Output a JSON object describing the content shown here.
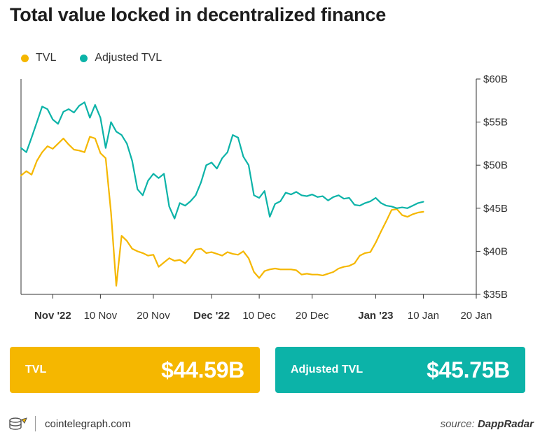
{
  "title": "Total value locked in decentralized finance",
  "legend": [
    {
      "label": "TVL",
      "color": "#f5b700"
    },
    {
      "label": "Adjusted TVL",
      "color": "#0cb3a8"
    }
  ],
  "cards": {
    "tvl": {
      "label": "TVL",
      "value": "$44.59B",
      "color": "#f5b700"
    },
    "adjusted": {
      "label": "Adjusted TVL",
      "value": "$45.75B",
      "color": "#0cb3a8"
    }
  },
  "footer": {
    "site": "cointelegraph.com",
    "source_prefix": "source:",
    "source_name": "DappRadar",
    "logo_icon": "cointelegraph-logo-icon"
  },
  "chart_data": {
    "type": "line",
    "x_unit": "days since Oct 25 2022",
    "ylim": [
      35,
      60
    ],
    "y_axis_position": "right",
    "y_ticks": [
      {
        "value": 35,
        "label": "$35B"
      },
      {
        "value": 40,
        "label": "$40B"
      },
      {
        "value": 45,
        "label": "$45B"
      },
      {
        "value": 50,
        "label": "$50B"
      },
      {
        "value": 55,
        "label": "$55B"
      },
      {
        "value": 60,
        "label": "$60B"
      }
    ],
    "x_ticks": [
      {
        "label": "Nov '22",
        "bold": true
      },
      {
        "label": "10 Nov",
        "bold": false
      },
      {
        "label": "20 Nov",
        "bold": false
      },
      {
        "label": "Dec '22",
        "bold": true
      },
      {
        "label": "10 Dec",
        "bold": false
      },
      {
        "label": "20 Dec",
        "bold": false
      },
      {
        "label": "Jan '23",
        "bold": true
      },
      {
        "label": "10 Jan",
        "bold": false
      },
      {
        "label": "20 Jan",
        "bold": false
      }
    ],
    "x_tick_dates": [
      "2022-11-01",
      "2022-11-10",
      "2022-11-20",
      "2022-12-01",
      "2022-12-10",
      "2022-12-20",
      "2023-01-01",
      "2023-01-10",
      "2023-01-20"
    ],
    "x_start": "2022-10-26",
    "x_end": "2023-01-20",
    "series": [
      {
        "name": "TVL",
        "color": "#f5b700",
        "points": [
          [
            "2022-10-26",
            48.8
          ],
          [
            "2022-10-27",
            49.3
          ],
          [
            "2022-10-28",
            48.9
          ],
          [
            "2022-10-29",
            50.5
          ],
          [
            "2022-10-30",
            51.5
          ],
          [
            "2022-10-31",
            52.2
          ],
          [
            "2022-11-01",
            51.9
          ],
          [
            "2022-11-02",
            52.5
          ],
          [
            "2022-11-03",
            53.1
          ],
          [
            "2022-11-04",
            52.4
          ],
          [
            "2022-11-05",
            51.8
          ],
          [
            "2022-11-06",
            51.7
          ],
          [
            "2022-11-07",
            51.5
          ],
          [
            "2022-11-08",
            53.3
          ],
          [
            "2022-11-09",
            53.1
          ],
          [
            "2022-11-10",
            51.4
          ],
          [
            "2022-11-11",
            50.8
          ],
          [
            "2022-11-12",
            44.5
          ],
          [
            "2022-11-13",
            36.0
          ],
          [
            "2022-11-14",
            41.8
          ],
          [
            "2022-11-15",
            41.2
          ],
          [
            "2022-11-16",
            40.3
          ],
          [
            "2022-11-17",
            40.0
          ],
          [
            "2022-11-18",
            39.8
          ],
          [
            "2022-11-19",
            39.5
          ],
          [
            "2022-11-20",
            39.6
          ],
          [
            "2022-11-21",
            38.2
          ],
          [
            "2022-11-22",
            38.7
          ],
          [
            "2022-11-23",
            39.2
          ],
          [
            "2022-11-24",
            38.9
          ],
          [
            "2022-11-25",
            39.0
          ],
          [
            "2022-11-26",
            38.6
          ],
          [
            "2022-11-27",
            39.3
          ],
          [
            "2022-11-28",
            40.2
          ],
          [
            "2022-11-29",
            40.3
          ],
          [
            "2022-11-30",
            39.8
          ],
          [
            "2022-12-01",
            39.9
          ],
          [
            "2022-12-02",
            39.7
          ],
          [
            "2022-12-03",
            39.5
          ],
          [
            "2022-12-04",
            39.9
          ],
          [
            "2022-12-05",
            39.7
          ],
          [
            "2022-12-06",
            39.6
          ],
          [
            "2022-12-07",
            40.0
          ],
          [
            "2022-12-08",
            39.2
          ],
          [
            "2022-12-09",
            37.6
          ],
          [
            "2022-12-10",
            36.9
          ],
          [
            "2022-12-11",
            37.7
          ],
          [
            "2022-12-12",
            37.9
          ],
          [
            "2022-12-13",
            38.0
          ],
          [
            "2022-12-14",
            37.9
          ],
          [
            "2022-12-15",
            37.9
          ],
          [
            "2022-12-16",
            37.9
          ],
          [
            "2022-12-17",
            37.8
          ],
          [
            "2022-12-18",
            37.3
          ],
          [
            "2022-12-19",
            37.4
          ],
          [
            "2022-12-20",
            37.3
          ],
          [
            "2022-12-21",
            37.3
          ],
          [
            "2022-12-22",
            37.2
          ],
          [
            "2022-12-23",
            37.4
          ],
          [
            "2022-12-24",
            37.6
          ],
          [
            "2022-12-25",
            38.0
          ],
          [
            "2022-12-26",
            38.2
          ],
          [
            "2022-12-27",
            38.3
          ],
          [
            "2022-12-28",
            38.6
          ],
          [
            "2022-12-29",
            39.5
          ],
          [
            "2022-12-30",
            39.8
          ],
          [
            "2022-12-31",
            39.9
          ],
          [
            "2023-01-01",
            41.0
          ],
          [
            "2023-01-02",
            42.3
          ],
          [
            "2023-01-03",
            43.5
          ],
          [
            "2023-01-04",
            44.8
          ],
          [
            "2023-01-05",
            44.9
          ],
          [
            "2023-01-06",
            44.2
          ],
          [
            "2023-01-07",
            44.0
          ],
          [
            "2023-01-08",
            44.3
          ],
          [
            "2023-01-09",
            44.5
          ],
          [
            "2023-01-10",
            44.59
          ]
        ]
      },
      {
        "name": "Adjusted TVL",
        "color": "#0cb3a8",
        "points": [
          [
            "2022-10-26",
            52.0
          ],
          [
            "2022-10-27",
            51.5
          ],
          [
            "2022-10-28",
            53.2
          ],
          [
            "2022-10-29",
            55.0
          ],
          [
            "2022-10-30",
            56.8
          ],
          [
            "2022-10-31",
            56.5
          ],
          [
            "2022-11-01",
            55.3
          ],
          [
            "2022-11-02",
            54.8
          ],
          [
            "2022-11-03",
            56.2
          ],
          [
            "2022-11-04",
            56.5
          ],
          [
            "2022-11-05",
            56.1
          ],
          [
            "2022-11-06",
            56.9
          ],
          [
            "2022-11-07",
            57.3
          ],
          [
            "2022-11-08",
            55.5
          ],
          [
            "2022-11-09",
            57.0
          ],
          [
            "2022-11-10",
            55.5
          ],
          [
            "2022-11-11",
            52.0
          ],
          [
            "2022-11-12",
            55.0
          ],
          [
            "2022-11-13",
            53.9
          ],
          [
            "2022-11-14",
            53.5
          ],
          [
            "2022-11-15",
            52.5
          ],
          [
            "2022-11-16",
            50.5
          ],
          [
            "2022-11-17",
            47.2
          ],
          [
            "2022-11-18",
            46.5
          ],
          [
            "2022-11-19",
            48.2
          ],
          [
            "2022-11-20",
            49.0
          ],
          [
            "2022-11-21",
            48.5
          ],
          [
            "2022-11-22",
            49.0
          ],
          [
            "2022-11-23",
            45.2
          ],
          [
            "2022-11-24",
            43.8
          ],
          [
            "2022-11-25",
            45.6
          ],
          [
            "2022-11-26",
            45.3
          ],
          [
            "2022-11-27",
            45.8
          ],
          [
            "2022-11-28",
            46.5
          ],
          [
            "2022-11-29",
            48.0
          ],
          [
            "2022-11-30",
            50.0
          ],
          [
            "2022-12-01",
            50.3
          ],
          [
            "2022-12-02",
            49.6
          ],
          [
            "2022-12-03",
            50.8
          ],
          [
            "2022-12-04",
            51.5
          ],
          [
            "2022-12-05",
            53.5
          ],
          [
            "2022-12-06",
            53.2
          ],
          [
            "2022-12-07",
            51.0
          ],
          [
            "2022-12-08",
            50.0
          ],
          [
            "2022-12-09",
            46.5
          ],
          [
            "2022-12-10",
            46.2
          ],
          [
            "2022-12-11",
            47.0
          ],
          [
            "2022-12-12",
            44.0
          ],
          [
            "2022-12-13",
            45.5
          ],
          [
            "2022-12-14",
            45.8
          ],
          [
            "2022-12-15",
            46.8
          ],
          [
            "2022-12-16",
            46.6
          ],
          [
            "2022-12-17",
            46.9
          ],
          [
            "2022-12-18",
            46.5
          ],
          [
            "2022-12-19",
            46.4
          ],
          [
            "2022-12-20",
            46.6
          ],
          [
            "2022-12-21",
            46.3
          ],
          [
            "2022-12-22",
            46.4
          ],
          [
            "2022-12-23",
            45.9
          ],
          [
            "2022-12-24",
            46.3
          ],
          [
            "2022-12-25",
            46.5
          ],
          [
            "2022-12-26",
            46.1
          ],
          [
            "2022-12-27",
            46.2
          ],
          [
            "2022-12-28",
            45.4
          ],
          [
            "2022-12-29",
            45.3
          ],
          [
            "2022-12-30",
            45.6
          ],
          [
            "2022-12-31",
            45.8
          ],
          [
            "2023-01-01",
            46.2
          ],
          [
            "2023-01-02",
            45.6
          ],
          [
            "2023-01-03",
            45.3
          ],
          [
            "2023-01-04",
            45.2
          ],
          [
            "2023-01-05",
            45.0
          ],
          [
            "2023-01-06",
            45.1
          ],
          [
            "2023-01-07",
            45.0
          ],
          [
            "2023-01-08",
            45.3
          ],
          [
            "2023-01-09",
            45.6
          ],
          [
            "2023-01-10",
            45.75
          ]
        ]
      }
    ]
  }
}
